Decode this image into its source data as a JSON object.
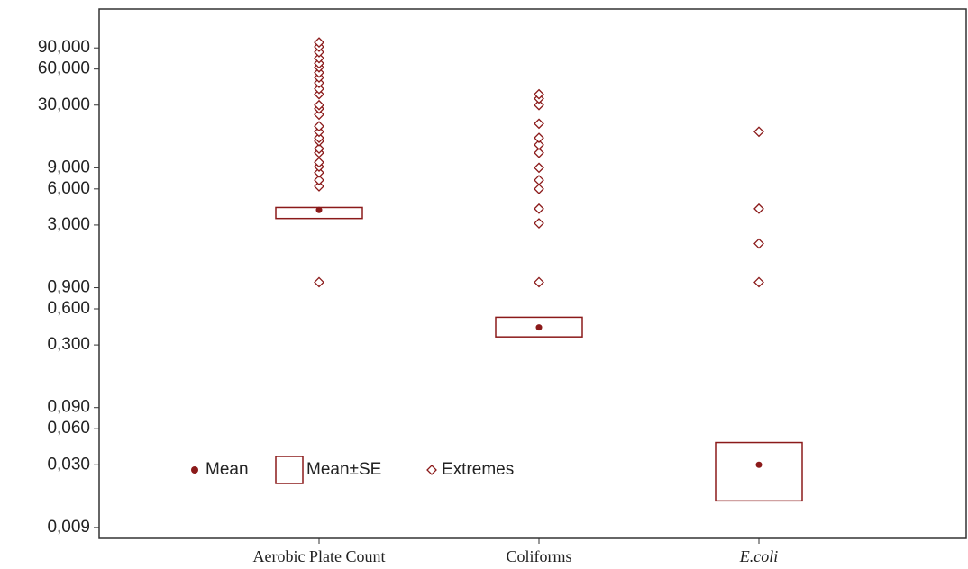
{
  "chart_data": {
    "type": "box",
    "categories": [
      "Aerobic Plate Count",
      "Coliforms",
      "E.coli"
    ],
    "means": [
      4.0,
      0.42,
      0.03
    ],
    "se_low": [
      3.4,
      0.35,
      0.015
    ],
    "se_high": [
      4.2,
      0.51,
      0.046
    ],
    "extremes": [
      [
        1.0,
        6.3,
        7.1,
        8.2,
        9.2,
        10,
        12,
        13,
        15,
        16,
        18,
        20,
        25,
        28,
        30,
        37,
        41,
        46,
        51,
        56,
        62,
        67,
        74,
        83,
        92,
        100
      ],
      [
        1.0,
        3.1,
        4.1,
        6.0,
        7.1,
        9.0,
        12,
        14,
        16,
        21,
        30,
        34,
        37
      ],
      [
        1.0,
        2.1,
        4.1,
        18
      ]
    ],
    "legend": [
      "Mean",
      "Mean±SE",
      "Extremes"
    ],
    "color": "#8b1a1a",
    "log_scale": true,
    "ylim": [
      0.0073,
      190
    ],
    "yticks": [
      {
        "value": 0.009,
        "label": "0,009"
      },
      {
        "value": 0.03,
        "label": "0,030"
      },
      {
        "value": 0.06,
        "label": "0,060"
      },
      {
        "value": 0.09,
        "label": "0,090"
      },
      {
        "value": 0.3,
        "label": "0,300"
      },
      {
        "value": 0.6,
        "label": "0,600"
      },
      {
        "value": 0.9,
        "label": "0,900"
      },
      {
        "value": 3,
        "label": "3,000"
      },
      {
        "value": 6,
        "label": "6,000"
      },
      {
        "value": 9,
        "label": "9,000"
      },
      {
        "value": 30,
        "label": "30,000"
      },
      {
        "value": 60,
        "label": "60,000"
      },
      {
        "value": 90,
        "label": "90,000"
      }
    ]
  }
}
